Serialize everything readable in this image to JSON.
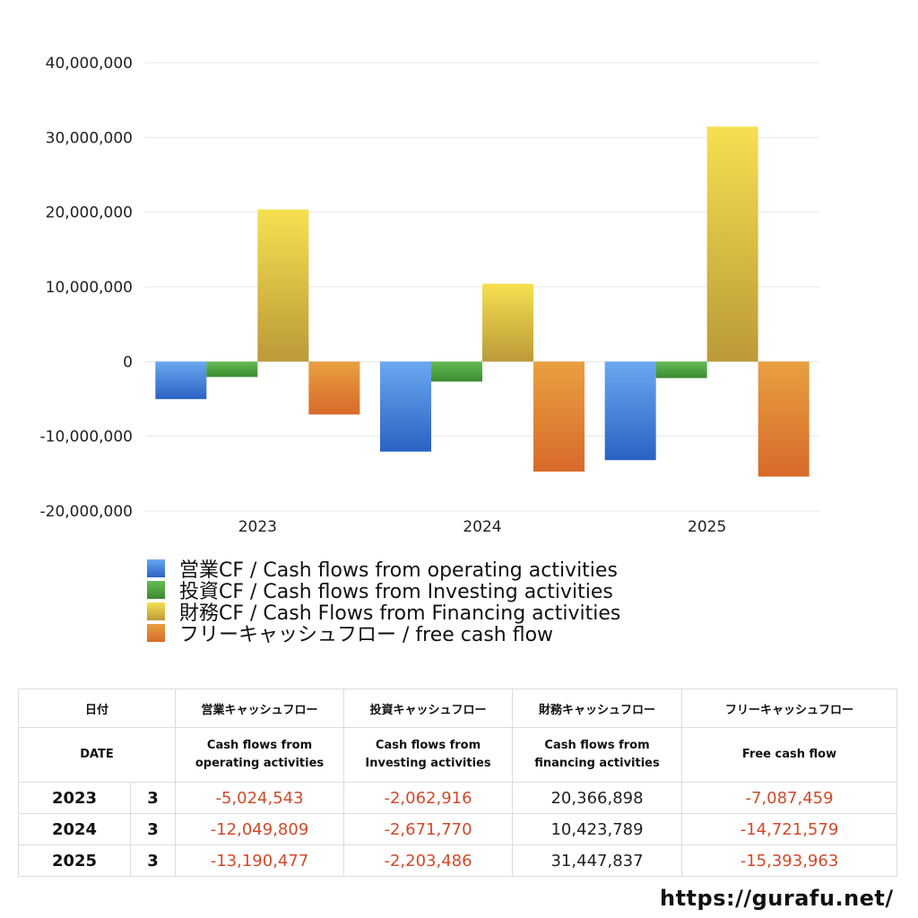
{
  "chart_data": {
    "type": "bar",
    "categories": [
      "2023",
      "2024",
      "2025"
    ],
    "ylim": [
      -20000000,
      40000000
    ],
    "yticks": [
      40000000,
      30000000,
      20000000,
      10000000,
      0,
      -10000000,
      -20000000
    ],
    "ytick_labels": [
      "40,000,000",
      "30,000,000",
      "20,000,000",
      "10,000,000",
      "0",
      "-10,000,000",
      "-20,000,000"
    ],
    "grid": true,
    "legend_position": "bottom",
    "series": [
      {
        "name": "営業CF / Cash flows from operating activities",
        "values": [
          -5024543,
          -12049809,
          -13190477
        ],
        "color_top": "#6aa8f0",
        "color_bottom": "#2a62c4"
      },
      {
        "name": "投資CF / Cash flows from Investing activities",
        "values": [
          -2062916,
          -2671770,
          -2203486
        ],
        "color_top": "#66bb55",
        "color_bottom": "#3a8a2e"
      },
      {
        "name": "財務CF / Cash Flows from Financing activities",
        "values": [
          20366898,
          10423789,
          31447837
        ],
        "color_top": "#f6e050",
        "color_bottom": "#bb9a38"
      },
      {
        "name": "フリーキャッシュフロー / free cash flow",
        "values": [
          -7087459,
          -14721579,
          -15393963
        ],
        "color_top": "#e8a040",
        "color_bottom": "#d86a2a"
      }
    ]
  },
  "table": {
    "header_jp": [
      "日付",
      "営業キャッシュフロー",
      "投資キャッシュフロー",
      "財務キャッシュフロー",
      "フリーキャッシュフロー"
    ],
    "header_en": [
      "DATE",
      "Cash flows from\noperating activities",
      "Cash flows from\nInvesting activities",
      "Cash flows from\nfinancing activities",
      "Free cash flow"
    ],
    "rows": [
      {
        "year": "2023",
        "month": "3",
        "operating": "-5,024,543",
        "investing": "-2,062,916",
        "financing": "20,366,898",
        "free": "-7,087,459"
      },
      {
        "year": "2024",
        "month": "3",
        "operating": "-12,049,809",
        "investing": "-2,671,770",
        "financing": "10,423,789",
        "free": "-14,721,579"
      },
      {
        "year": "2025",
        "month": "3",
        "operating": "-13,190,477",
        "investing": "-2,203,486",
        "financing": "31,447,837",
        "free": "-15,393,963"
      }
    ]
  },
  "footer": {
    "url": "https://gurafu.net/"
  }
}
